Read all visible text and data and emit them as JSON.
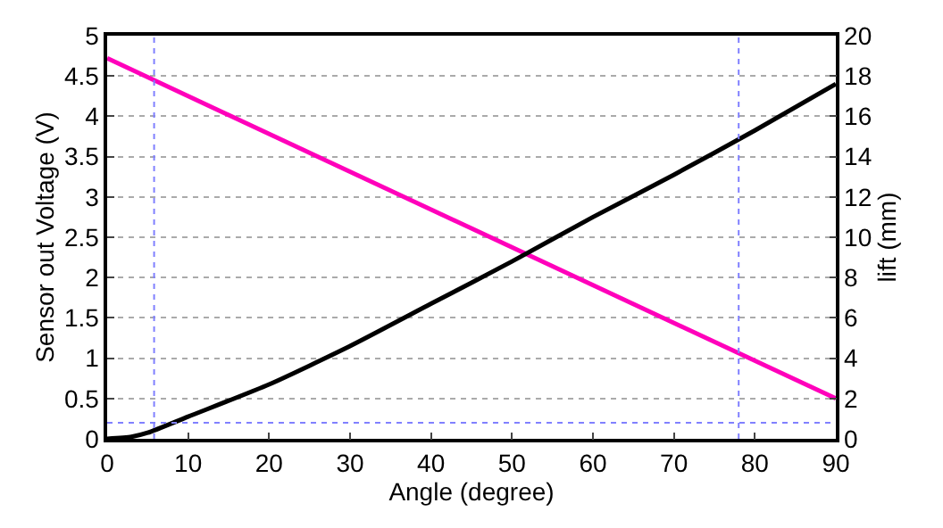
{
  "chart_data": {
    "type": "line",
    "xlabel": "Angle (degree)",
    "ylabel": "Sensor out Voltage (V)",
    "y2label": "lift (mm)",
    "xlim": [
      0,
      90
    ],
    "xticks": [
      0,
      10,
      20,
      30,
      40,
      50,
      60,
      70,
      80,
      90
    ],
    "ylim": [
      0,
      5
    ],
    "yticks": [
      0,
      0.5,
      1,
      1.5,
      2,
      2.5,
      3,
      3.5,
      4,
      4.5,
      5
    ],
    "y2lim": [
      0,
      20
    ],
    "y2ticks": [
      0,
      2,
      4,
      6,
      8,
      10,
      12,
      14,
      16,
      18,
      20
    ],
    "grid": "y",
    "marker": "none",
    "line_style": "solid",
    "series": [
      {
        "color": "#ff00bb",
        "x": [
          0,
          90
        ],
        "values": [
          4.72,
          0.5
        ]
      },
      {
        "color": "#000000",
        "axis": "y2",
        "x": [
          0,
          3,
          5,
          10,
          20,
          30,
          40,
          50,
          60,
          70,
          80,
          90
        ],
        "values": [
          0,
          0.1,
          0.3,
          1.1,
          2.7,
          4.6,
          6.7,
          8.8,
          11.0,
          13.1,
          15.3,
          17.6
        ]
      }
    ],
    "ref_lines": [
      {
        "axis": "x",
        "value": 5.8,
        "color": "#8080ff",
        "line_style": "dotted"
      },
      {
        "axis": "x",
        "value": 78,
        "color": "#8080ff",
        "line_style": "dotted"
      },
      {
        "axis": "y",
        "value": 0.2,
        "color": "#8080ff",
        "line_style": "dotted"
      }
    ]
  }
}
